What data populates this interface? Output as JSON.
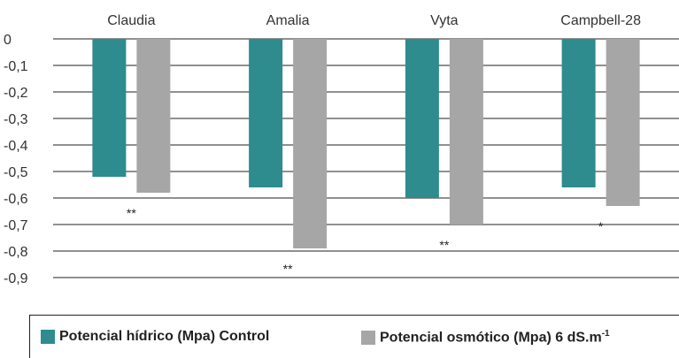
{
  "chart_data": {
    "type": "bar",
    "categories": [
      "Claudia",
      "Amalia",
      "Vyta",
      "Campbell-28"
    ],
    "series": [
      {
        "name": "Potencial hídrico (Mpa) Control",
        "color": "#2e8b8e",
        "values": [
          -0.52,
          -0.56,
          -0.6,
          -0.56
        ]
      },
      {
        "name": "Potencial osmótico (Mpa) 6 dS.m",
        "color": "#a6a6a6",
        "values": [
          -0.58,
          -0.79,
          -0.7,
          -0.63
        ]
      }
    ],
    "significance": [
      "**",
      "**",
      "**",
      "*"
    ],
    "yticks": [
      "0",
      "-0,1",
      "-0,2",
      "-0,3",
      "-0,4",
      "-0,5",
      "-0,6",
      "-0,7",
      "-0,8",
      "-0,9"
    ],
    "ylim": [
      -0.9,
      0
    ],
    "grid": true,
    "legend_position": "bottom",
    "x_axis_position": "top"
  },
  "legend": {
    "control_label": "Potencial hídrico (Mpa) Control",
    "osmotic_label": "Potencial osmótico (Mpa) 6 dS.m",
    "osmotic_superscript": "-1"
  }
}
